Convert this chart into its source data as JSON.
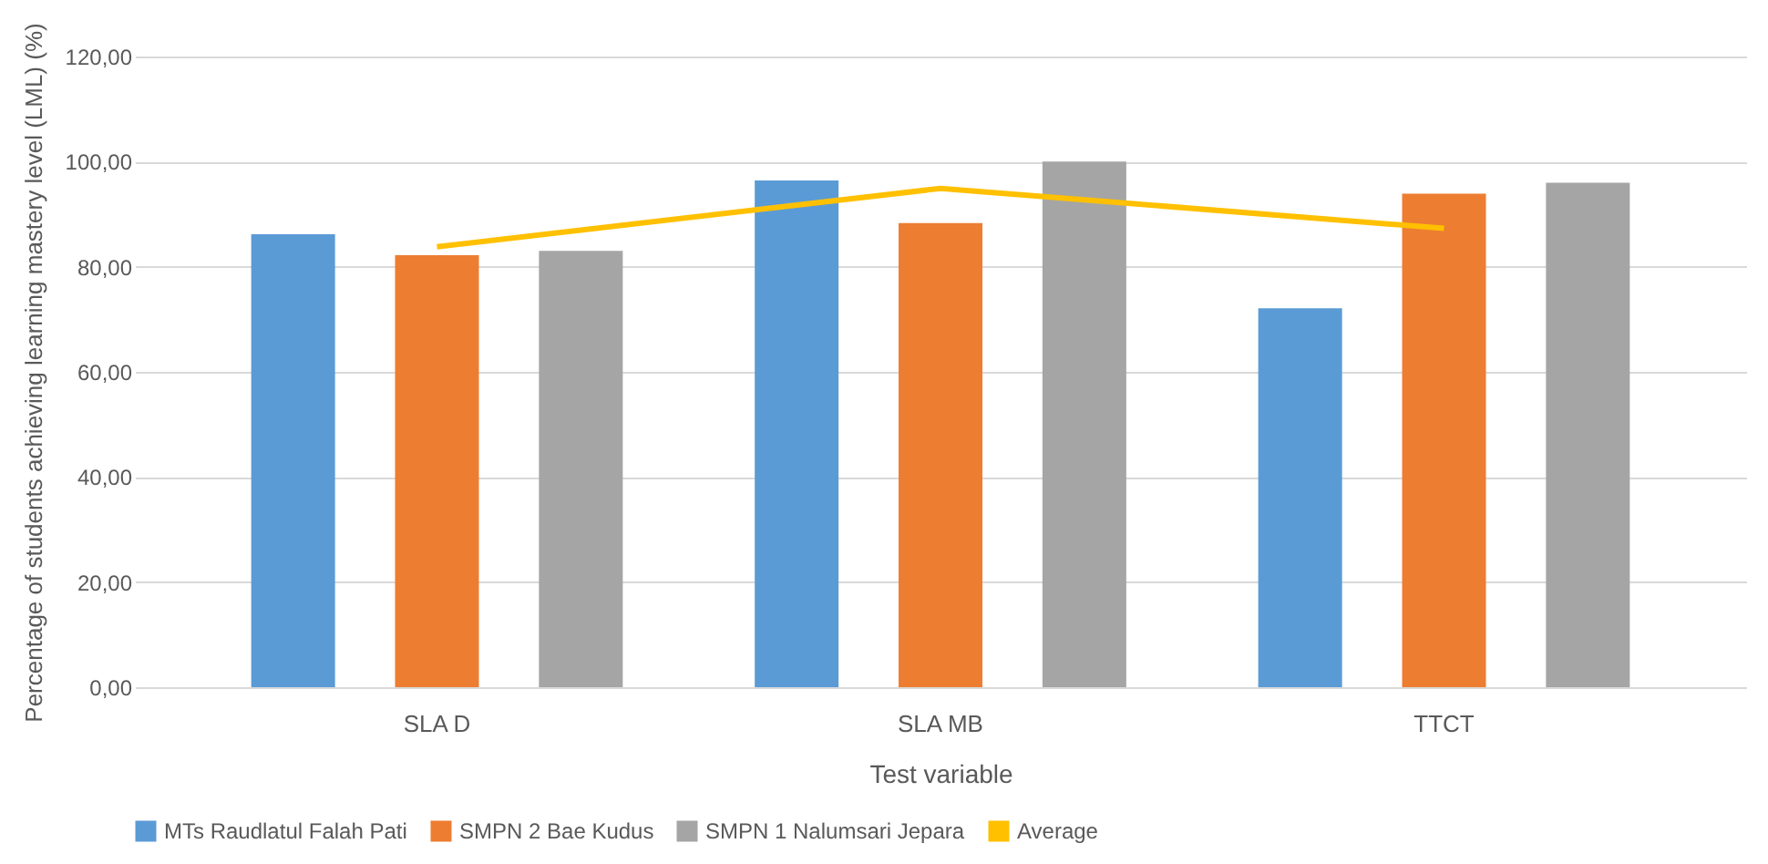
{
  "chart_data": {
    "type": "bar",
    "xlabel": "Test variable",
    "ylabel": "Percentage of students achieving learning mastery level (LML) (%)",
    "categories": [
      "SLA D",
      "SLA MB",
      "TTCT"
    ],
    "series": [
      {
        "name": "MTs Raudlatul Falah Pati",
        "color": "#5b9bd5",
        "values": [
          86.2,
          96.4,
          72.1
        ]
      },
      {
        "name": "SMPN 2 Bae Kudus",
        "color": "#ed7d31",
        "values": [
          82.2,
          88.3,
          93.9
        ]
      },
      {
        "name": "SMPN 1 Nalumsari Jepara",
        "color": "#a5a5a5",
        "values": [
          83.0,
          100.0,
          96.0
        ]
      },
      {
        "name": "Average",
        "color": "#ffc000",
        "type": "line",
        "values": [
          83.8,
          94.9,
          87.3
        ]
      }
    ],
    "ylim": [
      0,
      120
    ],
    "yticks": [
      {
        "value": 0,
        "label": "0,00"
      },
      {
        "value": 20,
        "label": "20,00"
      },
      {
        "value": 40,
        "label": "40,00"
      },
      {
        "value": 60,
        "label": "60,00"
      },
      {
        "value": 80,
        "label": "80,00"
      },
      {
        "value": 100,
        "label": "100,00"
      },
      {
        "value": 120,
        "label": "120,00"
      }
    ],
    "grid": "y",
    "legend": "bottom"
  }
}
